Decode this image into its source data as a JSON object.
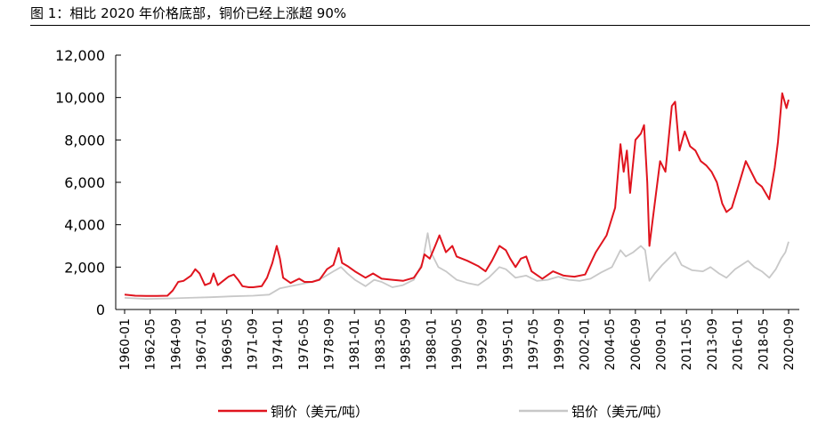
{
  "figure": {
    "title": "图 1：相比 2020 年价格底部，铜价已经上涨超 90%"
  },
  "chart_data": {
    "type": "line",
    "title": "图 1：相比 2020 年价格底部，铜价已经上涨超 90%",
    "xlabel": "",
    "ylabel": "",
    "ylim": [
      0,
      12000
    ],
    "y_ticks": [
      "0",
      "2,000",
      "4,000",
      "6,000",
      "8,000",
      "10,000",
      "12,000"
    ],
    "x_ticks": [
      "1960-01",
      "1962-05",
      "1964-09",
      "1967-01",
      "1969-05",
      "1971-09",
      "1974-01",
      "1976-05",
      "1978-09",
      "1981-01",
      "1983-05",
      "1985-09",
      "1988-01",
      "1990-05",
      "1992-09",
      "1995-01",
      "1997-05",
      "1999-09",
      "2002-01",
      "2004-05",
      "2006-09",
      "2009-01",
      "2011-05",
      "2013-09",
      "2016-01",
      "2018-05",
      "2020-09"
    ],
    "legend_position": "bottom",
    "grid": false,
    "series": [
      {
        "name": "铜价（美元/吨）",
        "color": "#e0141e",
        "points": [
          [
            1960.0,
            700
          ],
          [
            1961.0,
            650
          ],
          [
            1962.0,
            640
          ],
          [
            1963.0,
            640
          ],
          [
            1964.0,
            650
          ],
          [
            1964.5,
            900
          ],
          [
            1965.0,
            1300
          ],
          [
            1965.5,
            1350
          ],
          [
            1966.2,
            1600
          ],
          [
            1966.6,
            1900
          ],
          [
            1967.0,
            1700
          ],
          [
            1967.5,
            1150
          ],
          [
            1968.0,
            1250
          ],
          [
            1968.3,
            1700
          ],
          [
            1968.7,
            1150
          ],
          [
            1969.2,
            1350
          ],
          [
            1969.7,
            1550
          ],
          [
            1970.2,
            1650
          ],
          [
            1970.6,
            1400
          ],
          [
            1971.0,
            1100
          ],
          [
            1971.6,
            1050
          ],
          [
            1972.0,
            1050
          ],
          [
            1972.8,
            1100
          ],
          [
            1973.3,
            1500
          ],
          [
            1973.8,
            2200
          ],
          [
            1974.2,
            3000
          ],
          [
            1974.5,
            2400
          ],
          [
            1974.8,
            1500
          ],
          [
            1975.5,
            1250
          ],
          [
            1976.3,
            1450
          ],
          [
            1976.8,
            1300
          ],
          [
            1977.5,
            1300
          ],
          [
            1978.2,
            1400
          ],
          [
            1978.9,
            1900
          ],
          [
            1979.5,
            2100
          ],
          [
            1980.0,
            2900
          ],
          [
            1980.3,
            2200
          ],
          [
            1980.8,
            2050
          ],
          [
            1981.5,
            1800
          ],
          [
            1982.5,
            1500
          ],
          [
            1983.2,
            1700
          ],
          [
            1984.0,
            1450
          ],
          [
            1985.0,
            1400
          ],
          [
            1986.0,
            1350
          ],
          [
            1987.0,
            1500
          ],
          [
            1987.7,
            2000
          ],
          [
            1988.0,
            2600
          ],
          [
            1988.5,
            2400
          ],
          [
            1989.0,
            3000
          ],
          [
            1989.4,
            3500
          ],
          [
            1990.0,
            2700
          ],
          [
            1990.6,
            3000
          ],
          [
            1991.0,
            2500
          ],
          [
            1992.0,
            2300
          ],
          [
            1993.0,
            2050
          ],
          [
            1993.7,
            1800
          ],
          [
            1994.3,
            2300
          ],
          [
            1995.0,
            3000
          ],
          [
            1995.6,
            2800
          ],
          [
            1996.0,
            2400
          ],
          [
            1996.5,
            2000
          ],
          [
            1997.0,
            2400
          ],
          [
            1997.5,
            2500
          ],
          [
            1998.0,
            1800
          ],
          [
            1999.0,
            1450
          ],
          [
            2000.0,
            1800
          ],
          [
            2001.0,
            1600
          ],
          [
            2002.0,
            1550
          ],
          [
            2003.0,
            1650
          ],
          [
            2004.0,
            2700
          ],
          [
            2005.0,
            3500
          ],
          [
            2005.8,
            4800
          ],
          [
            2006.3,
            7800
          ],
          [
            2006.6,
            6500
          ],
          [
            2006.9,
            7500
          ],
          [
            2007.2,
            5500
          ],
          [
            2007.7,
            8000
          ],
          [
            2008.2,
            8300
          ],
          [
            2008.5,
            8700
          ],
          [
            2008.8,
            6000
          ],
          [
            2009.0,
            3000
          ],
          [
            2009.5,
            5000
          ],
          [
            2010.0,
            7000
          ],
          [
            2010.5,
            6500
          ],
          [
            2011.1,
            9600
          ],
          [
            2011.4,
            9800
          ],
          [
            2011.8,
            7500
          ],
          [
            2012.3,
            8400
          ],
          [
            2012.8,
            7700
          ],
          [
            2013.3,
            7500
          ],
          [
            2013.8,
            7000
          ],
          [
            2014.3,
            6800
          ],
          [
            2014.8,
            6500
          ],
          [
            2015.3,
            6000
          ],
          [
            2015.8,
            5000
          ],
          [
            2016.2,
            4600
          ],
          [
            2016.7,
            4800
          ],
          [
            2017.3,
            5800
          ],
          [
            2018.0,
            7000
          ],
          [
            2018.5,
            6500
          ],
          [
            2019.0,
            6000
          ],
          [
            2019.5,
            5800
          ],
          [
            2020.2,
            5200
          ],
          [
            2020.7,
            6700
          ],
          [
            2021.0,
            7900
          ],
          [
            2021.4,
            10200
          ],
          [
            2021.8,
            9500
          ],
          [
            2022.0,
            9900
          ]
        ]
      },
      {
        "name": "铝价（美元/吨）",
        "color": "#c8c8c8",
        "points": [
          [
            1960.0,
            550
          ],
          [
            1962.0,
            500
          ],
          [
            1964.0,
            520
          ],
          [
            1966.0,
            550
          ],
          [
            1968.0,
            580
          ],
          [
            1970.0,
            620
          ],
          [
            1972.0,
            650
          ],
          [
            1973.5,
            700
          ],
          [
            1974.5,
            1000
          ],
          [
            1975.5,
            1100
          ],
          [
            1976.5,
            1200
          ],
          [
            1977.5,
            1300
          ],
          [
            1978.5,
            1500
          ],
          [
            1979.5,
            1800
          ],
          [
            1980.2,
            2000
          ],
          [
            1980.8,
            1700
          ],
          [
            1981.5,
            1400
          ],
          [
            1982.5,
            1100
          ],
          [
            1983.3,
            1400
          ],
          [
            1984.0,
            1300
          ],
          [
            1985.0,
            1050
          ],
          [
            1986.0,
            1150
          ],
          [
            1987.0,
            1400
          ],
          [
            1987.8,
            2200
          ],
          [
            1988.3,
            3600
          ],
          [
            1988.6,
            2700
          ],
          [
            1989.3,
            2000
          ],
          [
            1990.0,
            1800
          ],
          [
            1991.0,
            1400
          ],
          [
            1992.0,
            1250
          ],
          [
            1993.0,
            1150
          ],
          [
            1994.0,
            1500
          ],
          [
            1995.0,
            2000
          ],
          [
            1995.6,
            1900
          ],
          [
            1996.5,
            1500
          ],
          [
            1997.5,
            1600
          ],
          [
            1998.5,
            1350
          ],
          [
            1999.5,
            1400
          ],
          [
            2000.5,
            1550
          ],
          [
            2001.5,
            1400
          ],
          [
            2002.5,
            1350
          ],
          [
            2003.5,
            1450
          ],
          [
            2004.5,
            1750
          ],
          [
            2005.5,
            2000
          ],
          [
            2006.3,
            2800
          ],
          [
            2006.8,
            2500
          ],
          [
            2007.5,
            2700
          ],
          [
            2008.2,
            3000
          ],
          [
            2008.6,
            2800
          ],
          [
            2009.0,
            1350
          ],
          [
            2009.5,
            1700
          ],
          [
            2010.2,
            2100
          ],
          [
            2011.0,
            2500
          ],
          [
            2011.4,
            2700
          ],
          [
            2012.0,
            2100
          ],
          [
            2013.0,
            1850
          ],
          [
            2014.0,
            1800
          ],
          [
            2014.7,
            2000
          ],
          [
            2015.5,
            1700
          ],
          [
            2016.2,
            1500
          ],
          [
            2017.0,
            1900
          ],
          [
            2018.2,
            2300
          ],
          [
            2018.8,
            2000
          ],
          [
            2019.5,
            1800
          ],
          [
            2020.2,
            1500
          ],
          [
            2020.8,
            1900
          ],
          [
            2021.3,
            2400
          ],
          [
            2021.7,
            2700
          ],
          [
            2022.0,
            3200
          ]
        ]
      }
    ]
  }
}
